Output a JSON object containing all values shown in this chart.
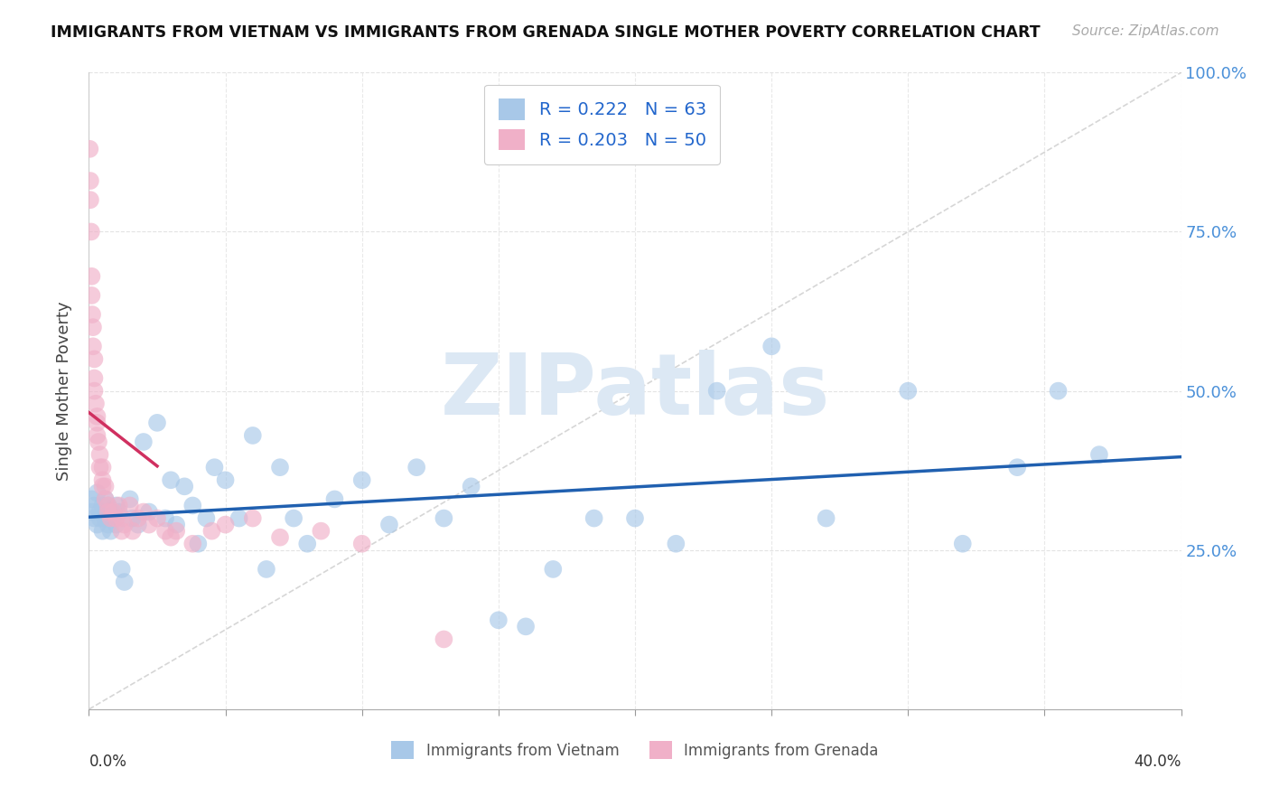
{
  "title": "IMMIGRANTS FROM VIETNAM VS IMMIGRANTS FROM GRENADA SINGLE MOTHER POVERTY CORRELATION CHART",
  "source": "Source: ZipAtlas.com",
  "ylabel": "Single Mother Poverty",
  "legend_vietnam": "Immigrants from Vietnam",
  "legend_grenada": "Immigrants from Grenada",
  "R_vietnam": 0.222,
  "N_vietnam": 63,
  "R_grenada": 0.203,
  "N_grenada": 50,
  "color_vietnam": "#a8c8e8",
  "color_grenada": "#f0b0c8",
  "line_color_vietnam": "#2060b0",
  "line_color_grenada": "#d03060",
  "watermark": "ZIPatlas",
  "watermark_color": "#dce8f4",
  "vietnam_x": [
    0.001,
    0.001,
    0.002,
    0.002,
    0.003,
    0.003,
    0.004,
    0.004,
    0.005,
    0.005,
    0.006,
    0.006,
    0.007,
    0.007,
    0.008,
    0.008,
    0.009,
    0.01,
    0.01,
    0.011,
    0.012,
    0.013,
    0.015,
    0.016,
    0.018,
    0.02,
    0.022,
    0.025,
    0.028,
    0.03,
    0.032,
    0.035,
    0.038,
    0.04,
    0.043,
    0.046,
    0.05,
    0.055,
    0.06,
    0.065,
    0.07,
    0.075,
    0.08,
    0.09,
    0.1,
    0.11,
    0.12,
    0.13,
    0.14,
    0.15,
    0.16,
    0.17,
    0.185,
    0.2,
    0.215,
    0.23,
    0.25,
    0.27,
    0.3,
    0.32,
    0.34,
    0.355,
    0.37
  ],
  "vietnam_y": [
    0.31,
    0.33,
    0.3,
    0.32,
    0.29,
    0.34,
    0.31,
    0.3,
    0.32,
    0.28,
    0.3,
    0.33,
    0.29,
    0.32,
    0.31,
    0.28,
    0.3,
    0.32,
    0.29,
    0.31,
    0.22,
    0.2,
    0.33,
    0.3,
    0.29,
    0.42,
    0.31,
    0.45,
    0.3,
    0.36,
    0.29,
    0.35,
    0.32,
    0.26,
    0.3,
    0.38,
    0.36,
    0.3,
    0.43,
    0.22,
    0.38,
    0.3,
    0.26,
    0.33,
    0.36,
    0.29,
    0.38,
    0.3,
    0.35,
    0.14,
    0.13,
    0.22,
    0.3,
    0.3,
    0.26,
    0.5,
    0.57,
    0.3,
    0.5,
    0.26,
    0.38,
    0.5,
    0.4
  ],
  "grenada_x": [
    0.0003,
    0.0005,
    0.0005,
    0.0008,
    0.001,
    0.001,
    0.0012,
    0.0015,
    0.0015,
    0.002,
    0.002,
    0.002,
    0.0025,
    0.003,
    0.003,
    0.003,
    0.0035,
    0.004,
    0.004,
    0.005,
    0.005,
    0.005,
    0.006,
    0.006,
    0.007,
    0.007,
    0.008,
    0.009,
    0.01,
    0.011,
    0.012,
    0.012,
    0.013,
    0.015,
    0.016,
    0.018,
    0.02,
    0.022,
    0.025,
    0.028,
    0.03,
    0.032,
    0.038,
    0.045,
    0.05,
    0.06,
    0.07,
    0.085,
    0.1,
    0.13
  ],
  "grenada_y": [
    0.88,
    0.83,
    0.8,
    0.75,
    0.68,
    0.65,
    0.62,
    0.6,
    0.57,
    0.55,
    0.52,
    0.5,
    0.48,
    0.46,
    0.45,
    0.43,
    0.42,
    0.4,
    0.38,
    0.38,
    0.36,
    0.35,
    0.35,
    0.33,
    0.32,
    0.31,
    0.3,
    0.31,
    0.3,
    0.32,
    0.28,
    0.3,
    0.29,
    0.32,
    0.28,
    0.3,
    0.31,
    0.29,
    0.3,
    0.28,
    0.27,
    0.28,
    0.26,
    0.28,
    0.29,
    0.3,
    0.27,
    0.28,
    0.26,
    0.11
  ],
  "xlim": [
    0.0,
    0.4
  ],
  "ylim": [
    0.0,
    1.0
  ],
  "background_color": "#ffffff",
  "grid_color": "#e0e0e0"
}
